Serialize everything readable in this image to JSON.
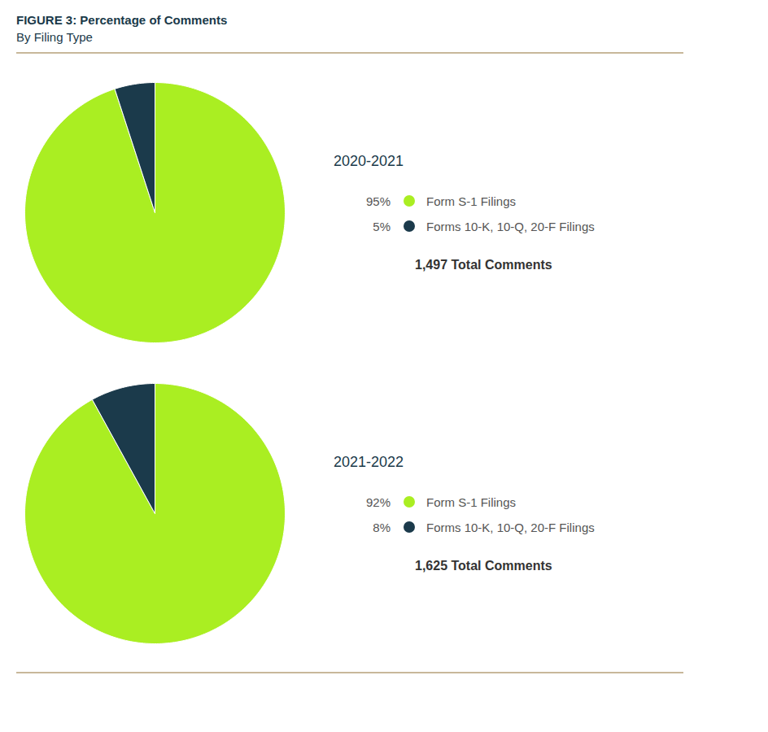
{
  "title": "FIGURE 3: Percentage of Comments",
  "subtitle": "By Filing Type",
  "chart_data": [
    {
      "type": "pie",
      "title": "2020-2021",
      "categories": [
        "Form S-1 Filings",
        "Forms 10-K, 10-Q, 20-F Filings"
      ],
      "values": [
        95,
        5
      ],
      "value_labels": [
        "95%",
        "5%"
      ],
      "colors": [
        "#aaee22",
        "#1b3a4b"
      ],
      "legend": "right",
      "annotation": "1,497 Total Comments"
    },
    {
      "type": "pie",
      "title": "2021-2022",
      "categories": [
        "Form S-1 Filings",
        "Forms 10-K, 10-Q, 20-F Filings"
      ],
      "values": [
        92,
        8
      ],
      "value_labels": [
        "92%",
        "8%"
      ],
      "colors": [
        "#aaee22",
        "#1b3a4b"
      ],
      "legend": "right",
      "annotation": "1,625 Total Comments"
    }
  ]
}
